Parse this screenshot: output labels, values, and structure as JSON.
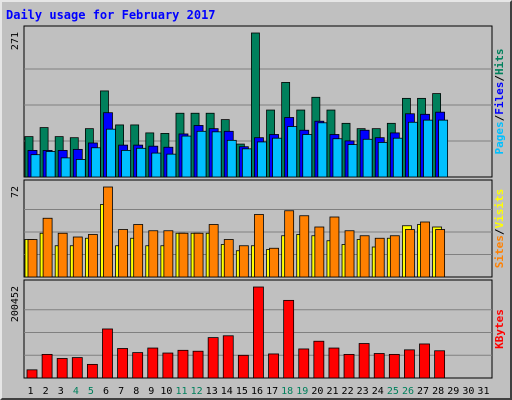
{
  "chart_data": {
    "type": "bar",
    "title": "Daily usage for February 2017",
    "title_color": "#0000ff",
    "background": "#c0c0c0",
    "days": [
      "1",
      "2",
      "3",
      "4",
      "5",
      "6",
      "7",
      "8",
      "9",
      "10",
      "11",
      "12",
      "13",
      "14",
      "15",
      "16",
      "17",
      "18",
      "19",
      "20",
      "21",
      "22",
      "23",
      "24",
      "25",
      "26",
      "27",
      "28",
      "29",
      "30",
      "31"
    ],
    "weekend_days": [
      "4",
      "5",
      "11",
      "12",
      "18",
      "19",
      "25",
      "26"
    ],
    "weekday_color": "#000000",
    "weekend_color": "#00805c",
    "panels": [
      {
        "id": "top",
        "max_label": "271",
        "ymax": 271,
        "grid_lines": 3,
        "series": [
          {
            "name": "Hits",
            "color": "#00805c",
            "values": [
              76,
              93,
              76,
              74,
              91,
              162,
              98,
              98,
              83,
              82,
              120,
              120,
              120,
              108,
              62,
              271,
              126,
              178,
              126,
              150,
              126,
              101,
              91,
              91,
              101,
              148,
              148,
              157
            ]
          },
          {
            "name": "Files",
            "color": "#0000ff",
            "values": [
              50,
              50,
              50,
              52,
              64,
              121,
              60,
              60,
              58,
              56,
              81,
              97,
              91,
              86,
              57,
              74,
              80,
              112,
              88,
              105,
              80,
              68,
              88,
              74,
              83,
              119,
              118,
              122
            ]
          },
          {
            "name": "Pages",
            "color": "#00c0ff",
            "values": [
              42,
              48,
              36,
              33,
              55,
              90,
              50,
              54,
              45,
              43,
              77,
              86,
              85,
              69,
              53,
              66,
              73,
              95,
              80,
              102,
              72,
              61,
              71,
              65,
              73,
              103,
              107,
              107
            ]
          }
        ],
        "legend": [
          "Pages",
          "/",
          "Files",
          "/",
          "Hits"
        ]
      },
      {
        "id": "mid",
        "max_label": "72",
        "ymax": 72,
        "grid_lines": 3,
        "series": [
          {
            "name": "Visits",
            "color": "#ffff00",
            "values": [
              30,
              35,
              25,
              25,
              31,
              58,
              25,
              31,
              25,
              25,
              35,
              35,
              35,
              26,
              21,
              25,
              22,
              33,
              34,
              33,
              29,
              26,
              30,
              24,
              31,
              41,
              42,
              40
            ]
          },
          {
            "name": "Sites",
            "color": "#ff8000",
            "values": [
              30,
              47,
              35,
              32,
              34,
              72,
              38,
              42,
              37,
              37,
              35,
              35,
              42,
              30,
              25,
              50,
              23,
              53,
              49,
              40,
              48,
              37,
              33,
              31,
              33,
              38,
              44,
              38
            ]
          }
        ],
        "legend": [
          "Sites",
          "/",
          "Visits"
        ]
      },
      {
        "id": "bottom",
        "max_label": "200452",
        "ymax": 200452,
        "grid_lines": 3,
        "series": [
          {
            "name": "KBytes",
            "color": "#ff0000",
            "values": [
              18000,
              52000,
              43000,
              45000,
              30000,
              108000,
              65000,
              56000,
              66000,
              55000,
              61000,
              59000,
              89000,
              93000,
              50000,
              200452,
              53000,
              171000,
              64000,
              81000,
              66000,
              52000,
              76000,
              54000,
              52000,
              62000,
              75000,
              60000
            ]
          }
        ],
        "legend": [
          "KBytes"
        ]
      }
    ],
    "legend_colors": {
      "Hits": "#00805c",
      "Files": "#0000ff",
      "Pages": "#00c0ff",
      "Sites": "#ff8000",
      "Visits": "#ffff00",
      "KBytes": "#ff0000",
      "/": "#000000"
    }
  }
}
